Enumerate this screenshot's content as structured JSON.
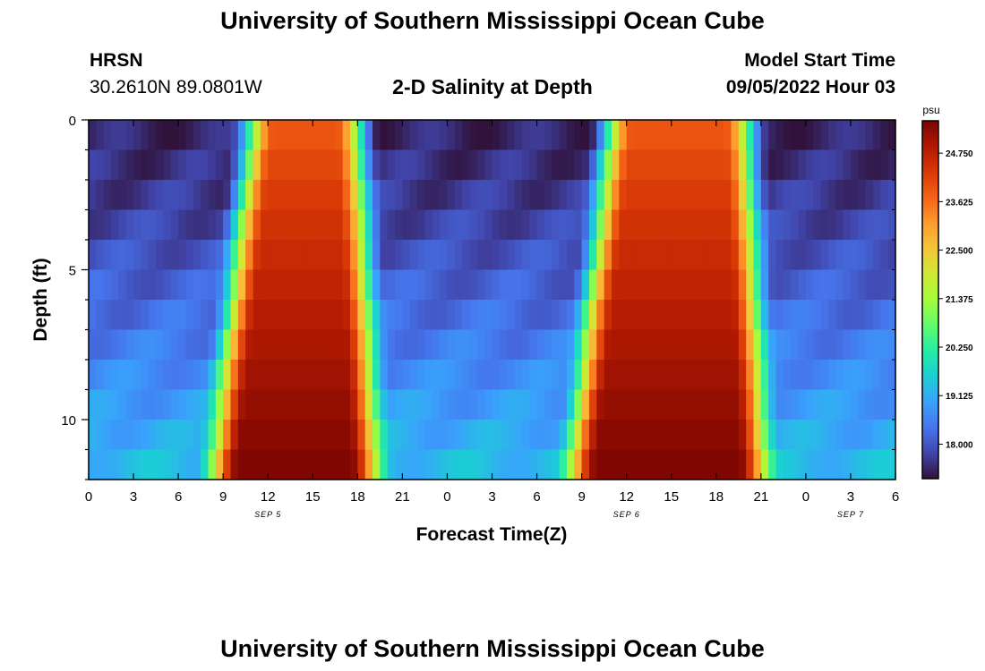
{
  "header": {
    "title": "University of Southern Mississippi Ocean Cube",
    "station": "HRSN",
    "coords": "30.2610N  89.0801W",
    "subtitle": "2-D Salinity at Depth",
    "model_label": "Model Start Time",
    "model_time": "09/05/2022 Hour 03",
    "footer_title": "University of Southern Mississippi Ocean Cube"
  },
  "chart_data": {
    "type": "heatmap",
    "title": "2-D Salinity at Depth",
    "xlabel": "Forecast Time(Z)",
    "ylabel": "Depth (ft)",
    "x_tick_labels": [
      "0",
      "3",
      "6",
      "9",
      "12",
      "15",
      "18",
      "21",
      "0",
      "3",
      "6",
      "9",
      "12",
      "15",
      "18",
      "21",
      "0",
      "3",
      "6"
    ],
    "x_range_hours": [
      0,
      54
    ],
    "date_labels": [
      {
        "text": "SEP 5",
        "hour": 12
      },
      {
        "text": "SEP 6",
        "hour": 36
      },
      {
        "text": "SEP 7",
        "hour": 51
      }
    ],
    "y_tick_labels": [
      "0",
      "5",
      "10"
    ],
    "y_ticks": [
      0,
      5,
      10
    ],
    "y_range": [
      0,
      12
    ],
    "colorbar": {
      "unit": "psu",
      "tick_labels": [
        "24.750",
        "23.625",
        "22.500",
        "21.375",
        "20.250",
        "19.125",
        "18.000"
      ],
      "ticks": [
        24.75,
        23.625,
        22.5,
        21.375,
        20.25,
        19.125,
        18.0
      ],
      "range": [
        17.2,
        25.5
      ],
      "colors": [
        "#30123b",
        "#4145ab",
        "#4675ed",
        "#39a2fc",
        "#1bcfd4",
        "#24eca6",
        "#61fc6c",
        "#a4fc3b",
        "#d1e834",
        "#f3c63a",
        "#fe9b2d",
        "#f36315",
        "#d93806",
        "#b11901",
        "#7a0403"
      ]
    },
    "salinity_model": {
      "depth_levels": 12,
      "hours_per_cell": 0.5,
      "surface_low_psu": 17.4,
      "bottom_low_psu": 19.4,
      "surface_high_psu": 23.8,
      "bottom_high_psu": 25.5,
      "fresh_periods": [
        {
          "start_hour": 0,
          "end_hour": 9.5
        },
        {
          "start_hour": 19.5,
          "end_hour": 33.5
        },
        {
          "start_hour": 45.5,
          "end_hour": 54
        }
      ],
      "transition_width_hours": 3
    }
  }
}
